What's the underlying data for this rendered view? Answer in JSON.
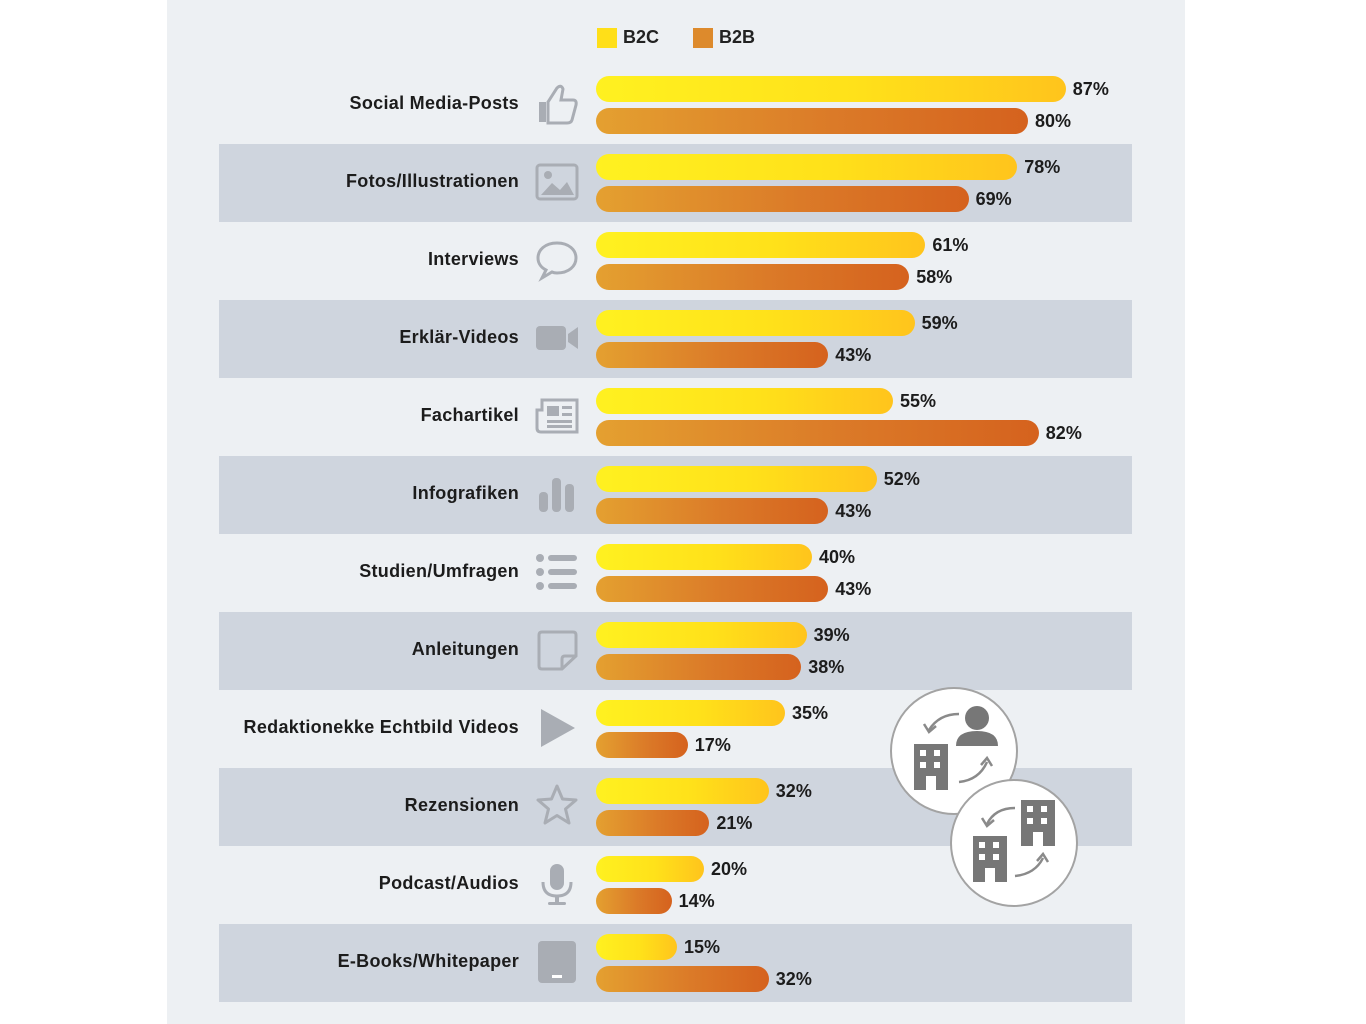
{
  "legend": [
    {
      "label": "B2C",
      "color": "#ffdf18"
    },
    {
      "label": "B2B",
      "color": "#dd8a2c"
    }
  ],
  "chart_data": {
    "type": "bar",
    "orientation": "horizontal",
    "categories": [
      "Social Media-Posts",
      "Fotos/Illustrationen",
      "Interviews",
      "Erklär-Videos",
      "Fachartikel",
      "Infografiken",
      "Studien/Umfragen",
      "Anleitungen",
      "Redaktionekke Echtbild Videos",
      "Rezensionen",
      "Podcast/Audios",
      "E-Books/Whitepaper"
    ],
    "icons": [
      "thumbs-up-icon",
      "image-icon",
      "speech-bubble-icon",
      "video-camera-icon",
      "newspaper-icon",
      "bar-chart-icon",
      "list-icon",
      "note-icon",
      "play-icon",
      "star-icon",
      "microphone-icon",
      "tablet-icon"
    ],
    "series": [
      {
        "name": "B2C",
        "values": [
          87,
          78,
          61,
          59,
          55,
          52,
          40,
          39,
          35,
          32,
          20,
          15
        ]
      },
      {
        "name": "B2B",
        "values": [
          80,
          69,
          58,
          43,
          82,
          43,
          43,
          38,
          17,
          21,
          14,
          32
        ]
      }
    ],
    "labels": [
      [
        "87%",
        "80%"
      ],
      [
        "78%",
        "69%"
      ],
      [
        "61%",
        "58%"
      ],
      [
        "59%",
        "43%"
      ],
      [
        "55%",
        "82%"
      ],
      [
        "52%",
        "43%"
      ],
      [
        "40%",
        "43%"
      ],
      [
        "39%",
        "38%"
      ],
      [
        "35%",
        "17%"
      ],
      [
        "32%",
        "21%"
      ],
      [
        "20%",
        "14%"
      ],
      [
        "15%",
        "32%"
      ]
    ],
    "xlim": [
      0,
      100
    ],
    "legend_position": "top",
    "alternating_row_bands": true,
    "decorative_icons": [
      "b2c-exchange-icon",
      "b2b-exchange-icon"
    ]
  }
}
